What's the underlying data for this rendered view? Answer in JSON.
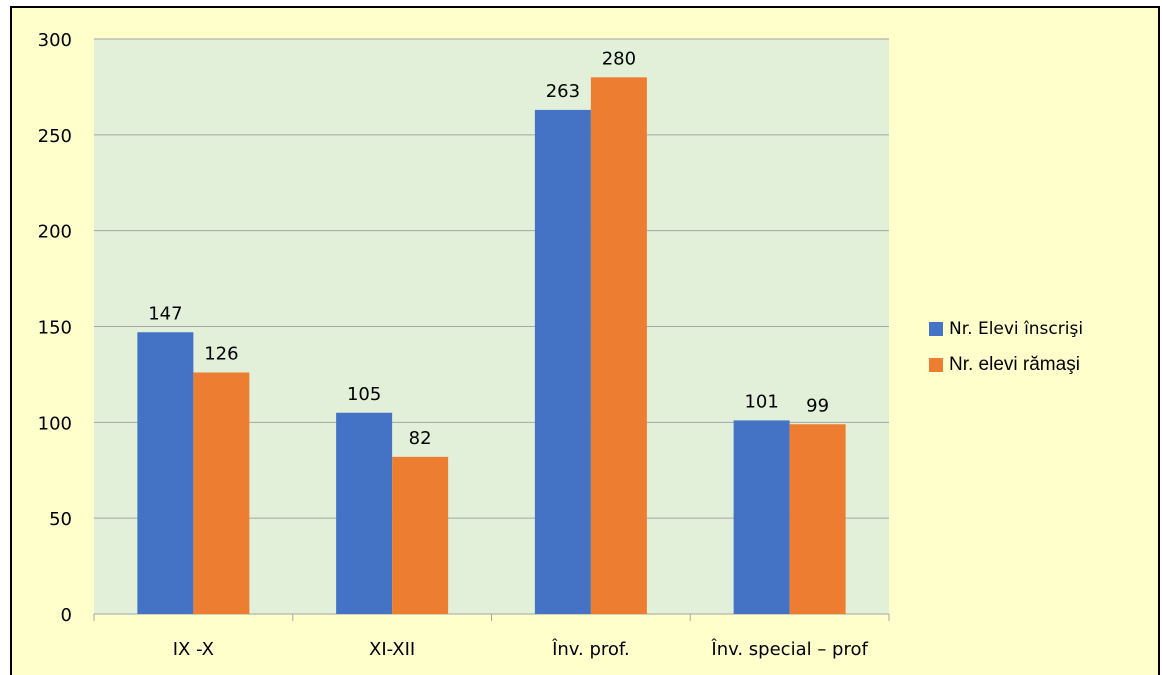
{
  "chart_data": {
    "type": "bar",
    "categories": [
      "IX -X",
      "XI-XII",
      "Înv. prof.",
      "Înv. special – prof"
    ],
    "series": [
      {
        "name": "Nr. Elevi înscrişi",
        "values": [
          147,
          105,
          263,
          101
        ],
        "color": "#4472c4"
      },
      {
        "name": "Nr. elevi rămaşi",
        "values": [
          126,
          82,
          280,
          99
        ],
        "color": "#ed7d31"
      }
    ],
    "ylim": [
      0,
      300
    ],
    "yticks": [
      "0",
      "50",
      "100",
      "150",
      "200",
      "250",
      "300"
    ],
    "grid": true,
    "plot_background": "#e2efd9",
    "chart_background": "#ffffcc",
    "legend_position": "right"
  }
}
